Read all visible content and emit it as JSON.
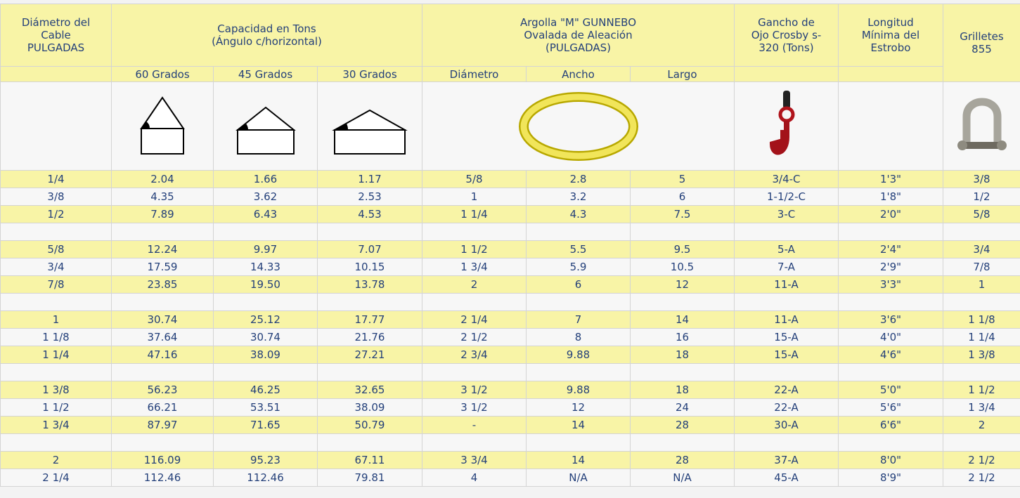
{
  "table": {
    "header": {
      "cable": "Diámetro del\nCable\nPULGADAS",
      "capacity": "Capacidad en Tons\n(Ángulo c/horizontal)",
      "ring": "Argolla \"M\" GUNNEBO\nOvalada de Aleación\n(PULGADAS)",
      "hook": "Gancho de\nOjo Crosby s-\n320 (Tons)",
      "length": "Longitud\nMínima del\nEstrobo",
      "shackle": "Grilletes\n855"
    },
    "subheader": [
      "60 Grados",
      "45 Grados",
      "30 Grados",
      "Diámetro",
      "Ancho",
      "Largo"
    ],
    "groups": [
      [
        [
          "1/4",
          "2.04",
          "1.66",
          "1.17",
          "5/8",
          "2.8",
          "5",
          "3/4-C",
          "1'3\"",
          "3/8"
        ],
        [
          "3/8",
          "4.35",
          "3.62",
          "2.53",
          "1",
          "3.2",
          "6",
          "1-1/2-C",
          "1'8\"",
          "1/2"
        ],
        [
          "1/2",
          "7.89",
          "6.43",
          "4.53",
          "1 1/4",
          "4.3",
          "7.5",
          "3-C",
          "2'0\"",
          "5/8"
        ]
      ],
      [
        [
          "5/8",
          "12.24",
          "9.97",
          "7.07",
          "1 1/2",
          "5.5",
          "9.5",
          "5-A",
          "2'4\"",
          "3/4"
        ],
        [
          "3/4",
          "17.59",
          "14.33",
          "10.15",
          "1 3/4",
          "5.9",
          "10.5",
          "7-A",
          "2'9\"",
          "7/8"
        ],
        [
          "7/8",
          "23.85",
          "19.50",
          "13.78",
          "2",
          "6",
          "12",
          "11-A",
          "3'3\"",
          "1"
        ]
      ],
      [
        [
          "1",
          "30.74",
          "25.12",
          "17.77",
          "2 1/4",
          "7",
          "14",
          "11-A",
          "3'6\"",
          "1 1/8"
        ],
        [
          "1 1/8",
          "37.64",
          "30.74",
          "21.76",
          "2 1/2",
          "8",
          "16",
          "15-A",
          "4'0\"",
          "1 1/4"
        ],
        [
          "1 1/4",
          "47.16",
          "38.09",
          "27.21",
          "2 3/4",
          "9.88",
          "18",
          "15-A",
          "4'6\"",
          "1 3/8"
        ]
      ],
      [
        [
          "1 3/8",
          "56.23",
          "46.25",
          "32.65",
          "3 1/2",
          "9.88",
          "18",
          "22-A",
          "5'0\"",
          "1 1/2"
        ],
        [
          "1 1/2",
          "66.21",
          "53.51",
          "38.09",
          "3 1/2",
          "12",
          "24",
          "22-A",
          "5'6\"",
          "1 3/4"
        ],
        [
          "1 3/4",
          "87.97",
          "71.65",
          "50.79",
          "-",
          "14",
          "28",
          "30-A",
          "6'6\"",
          "2"
        ]
      ],
      [
        [
          "2",
          "116.09",
          "95.23",
          "67.11",
          "3 3/4",
          "14",
          "28",
          "37-A",
          "8'0\"",
          "2 1/2"
        ],
        [
          "2 1/4",
          "112.46",
          "112.46",
          "79.81",
          "4",
          "N/A",
          "N/A",
          "45-A",
          "8'9\"",
          "2 1/2"
        ]
      ]
    ]
  }
}
